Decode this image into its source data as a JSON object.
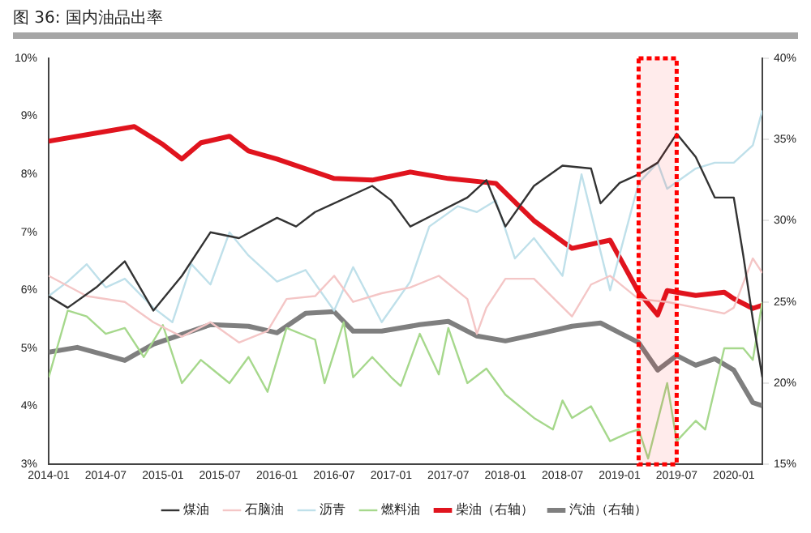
{
  "chart_data": {
    "type": "line",
    "title": "图 36:   国内油品出率",
    "xlim": [
      "2014-01",
      "2020-04"
    ],
    "xticks": [
      "2014-01",
      "2014-07",
      "2015-01",
      "2015-07",
      "2016-01",
      "2016-07",
      "2017-01",
      "2017-07",
      "2018-01",
      "2018-07",
      "2019-01",
      "2019-07",
      "2020-01"
    ],
    "ylim": [
      3,
      10
    ],
    "yticks": [
      {
        "value": 3,
        "label": "3%"
      },
      {
        "value": 4,
        "label": "4%"
      },
      {
        "value": 5,
        "label": "5%"
      },
      {
        "value": 6,
        "label": "6%"
      },
      {
        "value": 7,
        "label": "7%"
      },
      {
        "value": 8,
        "label": "8%"
      },
      {
        "value": 9,
        "label": "9%"
      },
      {
        "value": 10,
        "label": "10%"
      }
    ],
    "y2lim": [
      15,
      40
    ],
    "y2ticks": [
      {
        "value": 15,
        "label": "15%"
      },
      {
        "value": 20,
        "label": "20%"
      },
      {
        "value": 25,
        "label": "25%"
      },
      {
        "value": 30,
        "label": "30%"
      },
      {
        "value": 35,
        "label": "35%"
      },
      {
        "value": 40,
        "label": "40%"
      }
    ],
    "grid": false,
    "legend": "bottom",
    "marker": "none",
    "line_style": "solid",
    "bands": [
      {
        "axis": "x",
        "from": "2019-03",
        "to": "2019-07",
        "color": "#ff0000"
      }
    ],
    "series": [
      {
        "name": "煤油",
        "color": "#333333",
        "x": [
          "2014-01",
          "2014-03",
          "2014-06",
          "2014-09",
          "2014-12",
          "2015-03",
          "2015-06",
          "2015-09",
          "2016-01",
          "2016-03",
          "2016-05",
          "2016-11",
          "2017-01",
          "2017-03",
          "2017-06",
          "2017-09",
          "2017-11",
          "2018-01",
          "2018-04",
          "2018-07",
          "2018-10",
          "2018-11",
          "2019-01",
          "2019-03",
          "2019-05",
          "2019-07",
          "2019-09",
          "2019-11",
          "2020-01",
          "2020-02",
          "2020-03",
          "2020-04"
        ],
        "values": [
          5.9,
          5.7,
          6.05,
          6.5,
          5.65,
          6.25,
          7.0,
          6.9,
          7.25,
          7.1,
          7.35,
          7.8,
          7.55,
          7.1,
          7.35,
          7.6,
          7.9,
          7.1,
          7.8,
          8.15,
          8.1,
          7.5,
          7.85,
          8.0,
          8.2,
          8.7,
          8.3,
          7.6,
          7.6,
          6.6,
          5.5,
          4.5
        ]
      },
      {
        "name": "石脑油",
        "color": "#f4c6c6",
        "x": [
          "2014-01",
          "2014-05",
          "2014-09",
          "2014-12",
          "2015-03",
          "2015-06",
          "2015-09",
          "2015-12",
          "2016-02",
          "2016-05",
          "2016-07",
          "2016-09",
          "2016-12",
          "2017-03",
          "2017-06",
          "2017-09",
          "2017-10",
          "2017-11",
          "2018-01",
          "2018-04",
          "2018-08",
          "2018-10",
          "2018-12",
          "2019-03",
          "2019-06",
          "2019-09",
          "2019-12",
          "2020-01",
          "2020-03",
          "2020-04"
        ],
        "values": [
          6.25,
          5.9,
          5.8,
          5.45,
          5.2,
          5.45,
          5.1,
          5.3,
          5.85,
          5.9,
          6.25,
          5.8,
          5.95,
          6.05,
          6.25,
          5.85,
          5.25,
          5.7,
          6.2,
          6.2,
          5.55,
          6.1,
          6.25,
          5.85,
          5.8,
          5.7,
          5.6,
          5.7,
          6.55,
          6.3
        ]
      },
      {
        "name": "沥青",
        "color": "#bfe0ea",
        "x": [
          "2014-01",
          "2014-03",
          "2014-05",
          "2014-07",
          "2014-09",
          "2014-12",
          "2015-02",
          "2015-04",
          "2015-06",
          "2015-08",
          "2015-10",
          "2016-01",
          "2016-04",
          "2016-07",
          "2016-09",
          "2016-12",
          "2017-03",
          "2017-05",
          "2017-08",
          "2017-10",
          "2017-12",
          "2018-02",
          "2018-04",
          "2018-07",
          "2018-09",
          "2018-12",
          "2019-03",
          "2019-05",
          "2019-06",
          "2019-09",
          "2019-11",
          "2020-01",
          "2020-03",
          "2020-04"
        ],
        "values": [
          5.9,
          6.15,
          6.45,
          6.05,
          6.2,
          5.7,
          5.45,
          6.45,
          6.1,
          7.0,
          6.6,
          6.15,
          6.35,
          5.65,
          6.4,
          5.45,
          6.15,
          7.1,
          7.45,
          7.35,
          7.55,
          6.55,
          6.9,
          6.25,
          8.0,
          6.0,
          7.85,
          8.2,
          7.75,
          8.1,
          8.2,
          8.2,
          8.5,
          9.1
        ]
      },
      {
        "name": "燃料油",
        "color": "#a6d88c",
        "x": [
          "2014-01",
          "2014-03",
          "2014-05",
          "2014-07",
          "2014-09",
          "2014-11",
          "2015-01",
          "2015-03",
          "2015-05",
          "2015-08",
          "2015-10",
          "2015-12",
          "2016-02",
          "2016-05",
          "2016-06",
          "2016-08",
          "2016-09",
          "2016-11",
          "2017-01",
          "2017-02",
          "2017-04",
          "2017-06",
          "2017-07",
          "2017-09",
          "2017-11",
          "2018-01",
          "2018-04",
          "2018-06",
          "2018-07",
          "2018-08",
          "2018-10",
          "2018-12",
          "2019-02",
          "2019-03",
          "2019-04",
          "2019-06",
          "2019-07",
          "2019-09",
          "2019-10",
          "2019-12",
          "2020-02",
          "2020-03",
          "2020-04"
        ],
        "values": [
          4.5,
          5.65,
          5.55,
          5.25,
          5.35,
          4.85,
          5.4,
          4.4,
          4.8,
          4.4,
          4.85,
          4.25,
          5.35,
          5.15,
          4.4,
          5.45,
          4.5,
          4.85,
          4.5,
          4.35,
          5.25,
          4.55,
          5.35,
          4.4,
          4.65,
          4.2,
          3.8,
          3.6,
          4.1,
          3.8,
          4.0,
          3.4,
          3.55,
          3.6,
          3.1,
          4.4,
          3.4,
          3.75,
          3.6,
          5.0,
          5.0,
          4.8,
          5.8
        ]
      },
      {
        "name": "柴油（右轴）",
        "color": "#e0141e",
        "axis": "y2",
        "x": [
          "2014-01",
          "2014-10",
          "2015-01",
          "2015-03",
          "2015-05",
          "2015-08",
          "2015-10",
          "2016-01",
          "2016-07",
          "2016-11",
          "2017-03",
          "2017-07",
          "2017-12",
          "2018-04",
          "2018-08",
          "2018-12",
          "2019-03",
          "2019-05",
          "2019-06",
          "2019-09",
          "2019-12",
          "2020-01",
          "2020-03",
          "2020-04"
        ],
        "values": [
          34.9,
          35.8,
          34.7,
          33.8,
          34.8,
          35.2,
          34.3,
          33.8,
          32.6,
          32.5,
          33.0,
          32.6,
          32.3,
          30.0,
          28.3,
          28.8,
          25.6,
          24.2,
          25.7,
          25.4,
          25.6,
          25.2,
          24.6,
          24.8
        ]
      },
      {
        "name": "汽油（右轴）",
        "color": "#7f7f7f",
        "axis": "y2",
        "x": [
          "2014-01",
          "2014-04",
          "2014-09",
          "2014-12",
          "2015-06",
          "2015-10",
          "2016-01",
          "2016-04",
          "2016-07",
          "2016-09",
          "2016-12",
          "2017-04",
          "2017-07",
          "2017-10",
          "2018-01",
          "2018-05",
          "2018-08",
          "2018-11",
          "2019-01",
          "2019-03",
          "2019-05",
          "2019-07",
          "2019-09",
          "2019-11",
          "2020-01",
          "2020-03",
          "2020-04"
        ],
        "values": [
          21.9,
          22.2,
          21.4,
          22.4,
          23.6,
          23.5,
          23.1,
          24.3,
          24.4,
          23.2,
          23.2,
          23.6,
          23.8,
          22.9,
          22.6,
          23.1,
          23.5,
          23.7,
          23.1,
          22.5,
          20.8,
          21.7,
          21.1,
          21.5,
          20.8,
          18.8,
          18.6
        ]
      }
    ]
  }
}
